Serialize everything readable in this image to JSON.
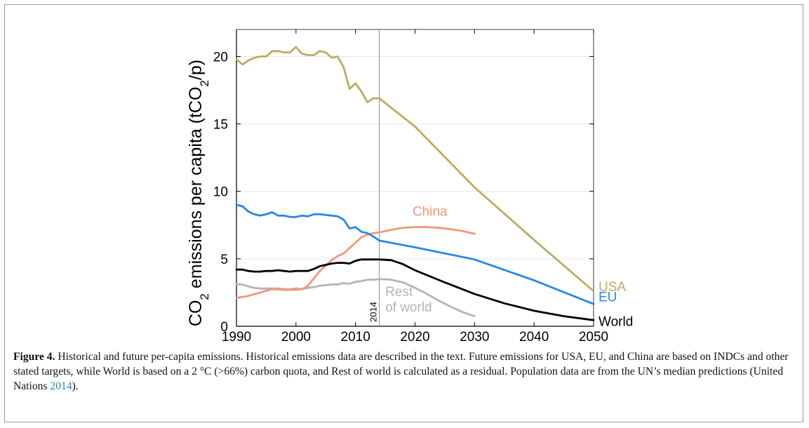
{
  "chart_data": {
    "type": "line",
    "ylabel": {
      "pre": "CO",
      "sub": "2",
      "mid": " emissions per capita (tCO",
      "sub2": "2",
      "post": "/p)"
    },
    "xlim": [
      1990,
      2050
    ],
    "ylim": [
      0,
      22
    ],
    "xticks": [
      1990,
      2000,
      2010,
      2020,
      2030,
      2040,
      2050
    ],
    "yticks": [
      0,
      5,
      10,
      15,
      20
    ],
    "grid": true,
    "annotation": {
      "x": 2014,
      "label": "2014"
    },
    "series": [
      {
        "name": "USA",
        "color": "#b9ad62",
        "x": [
          1990,
          1991,
          1992,
          1993,
          1994,
          1995,
          1996,
          1997,
          1998,
          1999,
          2000,
          2001,
          2002,
          2003,
          2004,
          2005,
          2006,
          2007,
          2008,
          2009,
          2010,
          2011,
          2012,
          2013,
          2014,
          2020,
          2030,
          2040,
          2050
        ],
        "y": [
          19.8,
          19.4,
          19.7,
          19.9,
          20.0,
          20.0,
          20.4,
          20.4,
          20.3,
          20.3,
          20.7,
          20.2,
          20.1,
          20.1,
          20.4,
          20.3,
          19.9,
          20.0,
          19.2,
          17.6,
          18.0,
          17.4,
          16.6,
          16.9,
          16.9,
          14.8,
          10.3,
          6.4,
          2.6
        ]
      },
      {
        "name": "EU",
        "color": "#2a86e8",
        "x": [
          1990,
          1991,
          1992,
          1993,
          1994,
          1995,
          1996,
          1997,
          1998,
          1999,
          2000,
          2001,
          2002,
          2003,
          2004,
          2005,
          2006,
          2007,
          2008,
          2009,
          2010,
          2011,
          2012,
          2013,
          2014,
          2020,
          2030,
          2040,
          2050
        ],
        "y": [
          9.0,
          8.9,
          8.5,
          8.3,
          8.2,
          8.3,
          8.45,
          8.2,
          8.2,
          8.1,
          8.1,
          8.2,
          8.15,
          8.3,
          8.3,
          8.25,
          8.2,
          8.15,
          7.9,
          7.25,
          7.35,
          7.0,
          6.9,
          6.65,
          6.35,
          5.85,
          4.95,
          3.4,
          1.65
        ]
      },
      {
        "name": "China",
        "color": "#f5967a",
        "x": [
          1990,
          1992,
          1994,
          1996,
          1998,
          2000,
          2001,
          2002,
          2003,
          2004,
          2005,
          2006,
          2007,
          2008,
          2009,
          2010,
          2011,
          2012,
          2013,
          2014,
          2016,
          2018,
          2020,
          2022,
          2024,
          2026,
          2028,
          2030
        ],
        "y": [
          2.1,
          2.25,
          2.5,
          2.75,
          2.7,
          2.7,
          2.75,
          3.0,
          3.55,
          4.1,
          4.5,
          4.9,
          5.2,
          5.4,
          5.8,
          6.2,
          6.6,
          6.8,
          6.9,
          6.95,
          7.15,
          7.3,
          7.35,
          7.35,
          7.3,
          7.2,
          7.05,
          6.85
        ]
      },
      {
        "name": "World",
        "color": "#000000",
        "x": [
          1990,
          1991,
          1992,
          1993,
          1994,
          1995,
          1996,
          1997,
          1998,
          1999,
          2000,
          2001,
          2002,
          2003,
          2004,
          2005,
          2006,
          2007,
          2008,
          2009,
          2010,
          2011,
          2012,
          2013,
          2014,
          2016,
          2018,
          2020,
          2025,
          2030,
          2035,
          2040,
          2045,
          2050
        ],
        "y": [
          4.2,
          4.2,
          4.1,
          4.05,
          4.05,
          4.1,
          4.1,
          4.15,
          4.1,
          4.05,
          4.1,
          4.1,
          4.1,
          4.25,
          4.45,
          4.55,
          4.65,
          4.7,
          4.7,
          4.65,
          4.85,
          4.95,
          4.95,
          4.95,
          4.95,
          4.9,
          4.6,
          4.15,
          3.25,
          2.4,
          1.7,
          1.15,
          0.75,
          0.45
        ]
      },
      {
        "name": "Rest of world",
        "label_lines": [
          "Rest",
          "of world"
        ],
        "color": "#b4b4b4",
        "x": [
          1990,
          1991,
          1992,
          1993,
          1994,
          1995,
          1996,
          1997,
          1998,
          1999,
          2000,
          2001,
          2002,
          2003,
          2004,
          2005,
          2006,
          2007,
          2008,
          2009,
          2010,
          2011,
          2012,
          2013,
          2014,
          2016,
          2018,
          2020,
          2022,
          2024,
          2026,
          2028,
          2030
        ],
        "y": [
          3.1,
          3.1,
          2.95,
          2.85,
          2.8,
          2.8,
          2.8,
          2.8,
          2.75,
          2.75,
          2.8,
          2.75,
          2.85,
          2.9,
          3.0,
          3.05,
          3.1,
          3.1,
          3.2,
          3.15,
          3.3,
          3.35,
          3.45,
          3.45,
          3.5,
          3.45,
          3.25,
          2.85,
          2.4,
          1.9,
          1.45,
          1.05,
          0.75
        ]
      }
    ]
  },
  "caption": {
    "label": "Figure 4.",
    "text": " Historical and future per-capita emissions. Historical emissions data are described in the text. Future emissions for USA, EU, and China are based on INDCs and other stated targets, while World is based on a 2 °C (>66%) carbon quota, and Rest of world is calculated as a residual. Population data are from the UN’s median predictions (United Nations ",
    "ref": "2014",
    "end": ")."
  }
}
